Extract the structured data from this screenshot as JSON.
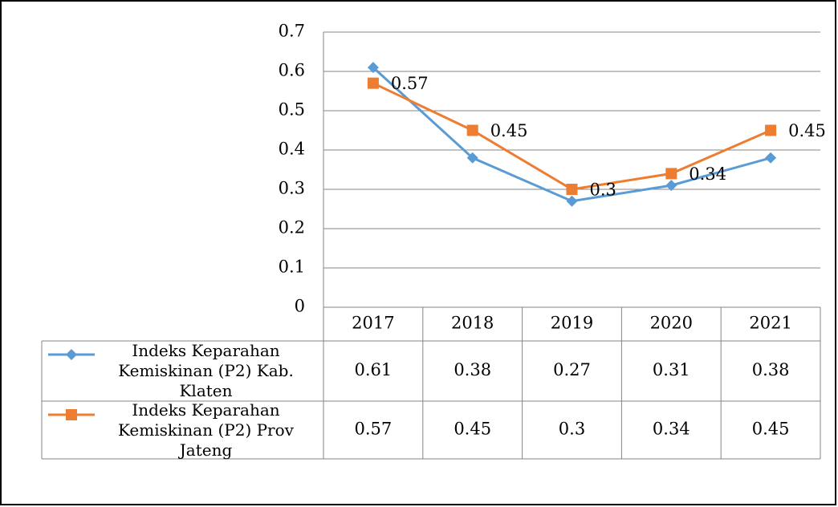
{
  "chart_data": {
    "type": "line",
    "categories": [
      "2017",
      "2018",
      "2019",
      "2020",
      "2021"
    ],
    "series": [
      {
        "name": "Indeks Keparahan Kemiskinan (P2) Kab. Klaten",
        "color": "#5b9bd5",
        "marker": "diamond",
        "show_labels": false,
        "values": [
          0.61,
          0.38,
          0.27,
          0.31,
          0.38
        ]
      },
      {
        "name": "Indeks Keparahan Kemiskinan (P2) Prov Jateng",
        "color": "#ed7d31",
        "marker": "square",
        "show_labels": true,
        "values": [
          0.57,
          0.45,
          0.3,
          0.34,
          0.45
        ]
      }
    ],
    "ylim": [
      0,
      0.7
    ],
    "yticks": [
      0,
      0.1,
      0.2,
      0.3,
      0.4,
      0.5,
      0.6,
      0.7
    ],
    "grid": true,
    "data_table": true
  }
}
